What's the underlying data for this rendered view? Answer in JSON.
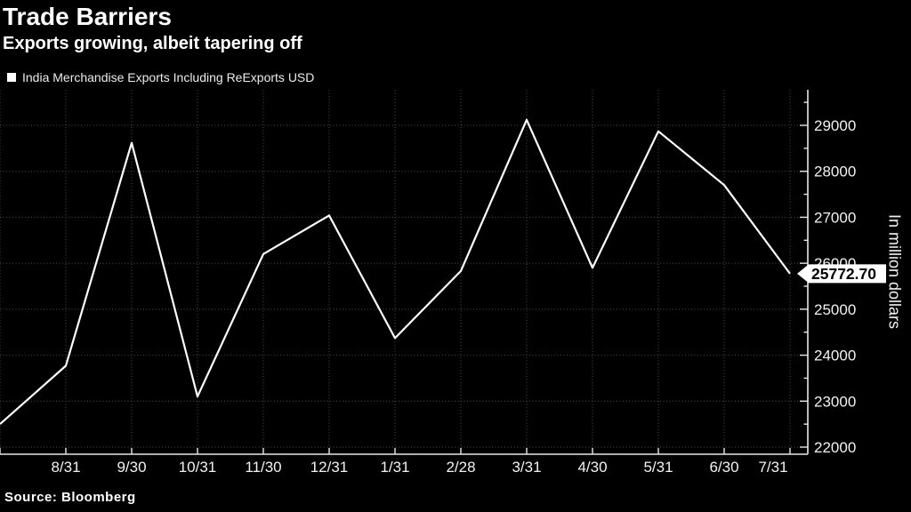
{
  "header": {
    "title": "Trade Barriers",
    "subtitle": "Exports growing, albeit tapering off"
  },
  "legend": {
    "marker": "square-marker",
    "label": "India Merchandise Exports Including ReExports USD"
  },
  "source": "Source:  Bloomberg",
  "colors": {
    "background": "#000000",
    "title_text": "#ffffff",
    "tick_text": "#f2f2f2",
    "grid": "#4f4f4f",
    "axis": "#e8e8e8",
    "line": "#ffffff",
    "badge_bg": "#ffffff",
    "badge_text": "#000000"
  },
  "chart_data": {
    "type": "line",
    "title": "Trade Barriers",
    "series_name": "India Merchandise Exports Including ReExports USD",
    "xlabel": "",
    "ylabel": "In million dollars",
    "categories": [
      "",
      "8/31",
      "9/30",
      "10/31",
      "11/30",
      "12/31",
      "1/31",
      "2/28",
      "3/31",
      "4/30",
      "5/31",
      "6/30",
      "7/31"
    ],
    "values": [
      22500,
      23770,
      28620,
      23100,
      26200,
      27040,
      24370,
      25830,
      29120,
      25900,
      28870,
      27700,
      25772.7
    ],
    "last_value_label": "25772.70",
    "y_ticks": [
      22000,
      23000,
      24000,
      25000,
      26000,
      27000,
      28000,
      29000
    ],
    "y_minor_tick_step": 500,
    "ylim": [
      21830,
      29780
    ],
    "grid": "dotted, both axes",
    "legend_position": "top-left",
    "y_axis_side": "right"
  }
}
